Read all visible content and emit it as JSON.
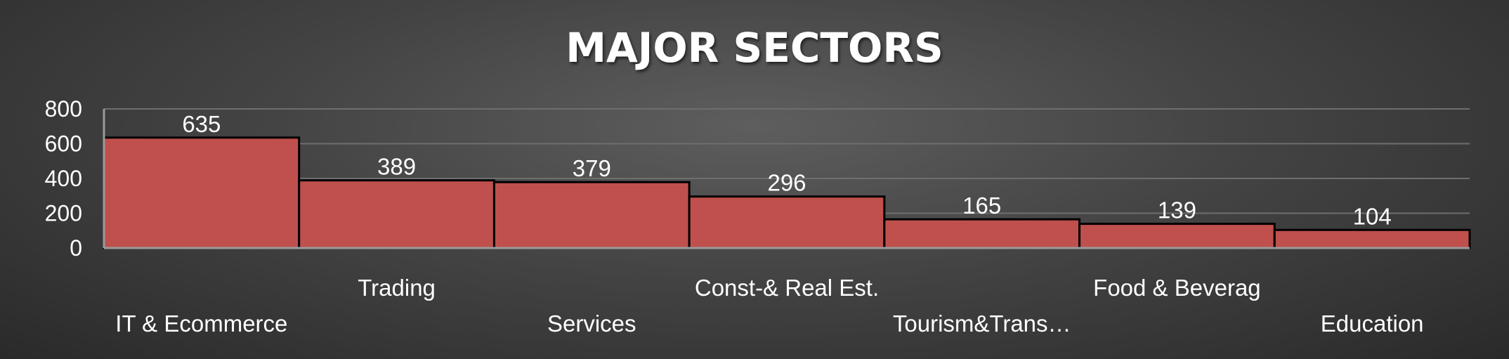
{
  "chart_data": {
    "type": "bar",
    "title": "MAJOR SECTORS",
    "categories": [
      "IT & Ecommerce",
      "Trading",
      "Services",
      "Const-& Real Est.",
      "Tourism&Trans…",
      "Food & Beverag",
      "Education"
    ],
    "values": [
      635,
      389,
      379,
      296,
      165,
      139,
      104
    ],
    "yticks": [
      "0",
      "200",
      "400",
      "600",
      "800"
    ],
    "ylim": [
      0,
      800
    ],
    "xlabel": "",
    "ylabel": "",
    "grid": true,
    "legend": "none",
    "colors": {
      "bar": "#c0504d",
      "bar_border": "#000000",
      "grid": "#6e6e6e",
      "axis": "#9a9a9a",
      "text": "#ffffff"
    }
  }
}
